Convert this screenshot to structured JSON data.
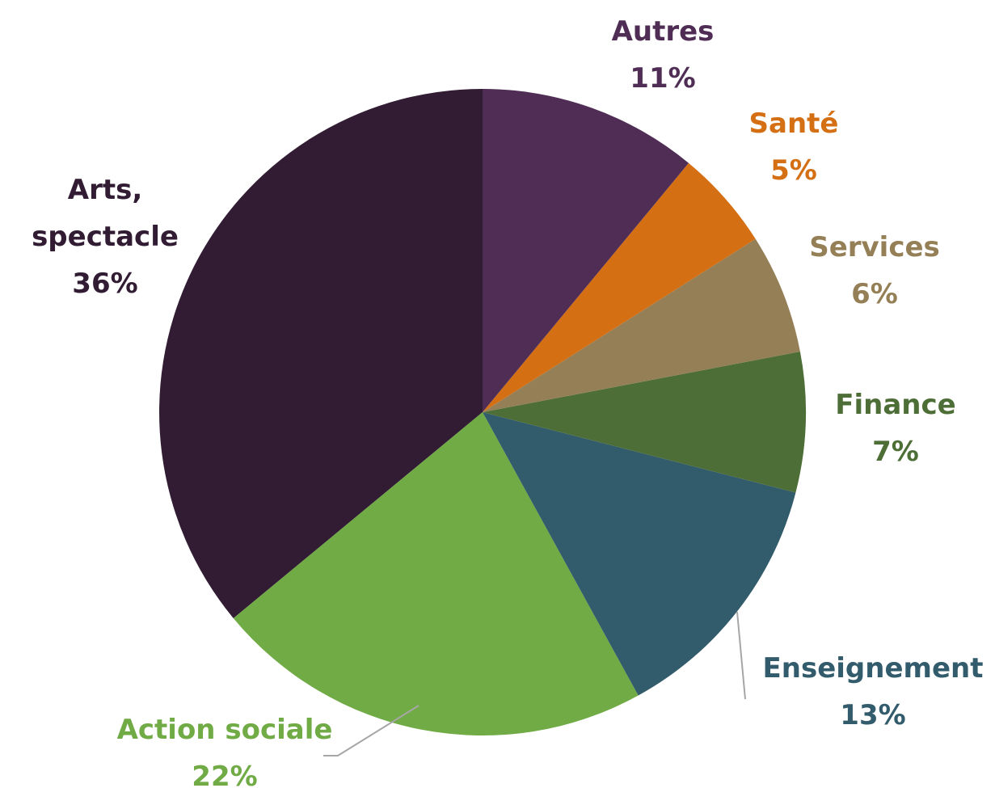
{
  "chart_data": {
    "type": "pie",
    "categories": [
      "Autres",
      "Santé",
      "Services",
      "Finance",
      "Enseignement",
      "Action sociale",
      "Arts, spectacle"
    ],
    "values": [
      11,
      5,
      6,
      7,
      13,
      22,
      36
    ],
    "value_labels": [
      "11%",
      "5%",
      "6%",
      "7%",
      "13%",
      "22%",
      "36%"
    ],
    "colors": [
      "#4f2d55",
      "#d46f14",
      "#957f57",
      "#4d6e36",
      "#325b6b",
      "#70ab46",
      "#311c33"
    ]
  }
}
